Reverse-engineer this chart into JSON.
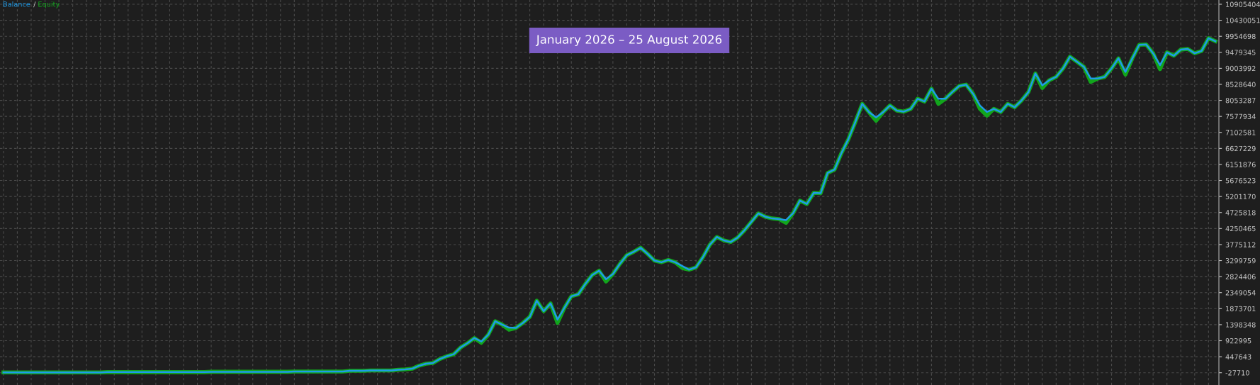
{
  "chart_data": {
    "type": "line",
    "annotations": [
      "January 2026 – 25 August 2026",
      "/"
    ],
    "categories": [
      null,
      null,
      null,
      null,
      null,
      null,
      null,
      null,
      null,
      null,
      null,
      null,
      null,
      null,
      null,
      null,
      null,
      null,
      null,
      null,
      null,
      null,
      null,
      null,
      null,
      null,
      null,
      null,
      null,
      null,
      null,
      null,
      null,
      null,
      null,
      null,
      null,
      null,
      null,
      null,
      null,
      null,
      null,
      null,
      null,
      null,
      null,
      null,
      null,
      null,
      null,
      null,
      null,
      null,
      null,
      null,
      null,
      null,
      null,
      null,
      null,
      null,
      null,
      null,
      null,
      null,
      null,
      null,
      null,
      null,
      null,
      null,
      null,
      null,
      null,
      null,
      null,
      null,
      null,
      null,
      null,
      null,
      null,
      null,
      null,
      null,
      null,
      null,
      null,
      null,
      null,
      null,
      null,
      null,
      null,
      null,
      null,
      null,
      null,
      null,
      null,
      null,
      null,
      null,
      null,
      null,
      null,
      null,
      null,
      null,
      null,
      null,
      null,
      null,
      null,
      null,
      null,
      null,
      null,
      null,
      null,
      null,
      null,
      null,
      null,
      null,
      null,
      null,
      null,
      null,
      null,
      null,
      null,
      null,
      null,
      null,
      null,
      null,
      null,
      null,
      null,
      null,
      null,
      null,
      null,
      null,
      null,
      null,
      null,
      null,
      null,
      null,
      null,
      null,
      null,
      null,
      null,
      null,
      null,
      null,
      null,
      null,
      null,
      null,
      null,
      null,
      null,
      null,
      null,
      null,
      null,
      null,
      null,
      null,
      null,
      null
    ],
    "ylim": [
      -391600,
      11031600
    ],
    "yticks": [
      -27710,
      447643,
      922995,
      1398348,
      1873701,
      2349054,
      2824406,
      3299759,
      3775112,
      4250465,
      4725818,
      5201170,
      5676523,
      6151876,
      6627229,
      7102581,
      7577934,
      8053287,
      8528640,
      9003992,
      9479345,
      9954698,
      10430051,
      10905404
    ],
    "tick_labels": "y",
    "grid": true,
    "line_style": "solid",
    "series": [
      {
        "name": "Equity",
        "color": "#12a51c",
        "values": [
          -20000,
          -20000,
          -20000,
          -20000,
          -20000,
          -20000,
          -20000,
          -20000,
          -20000,
          -20000,
          -20000,
          -20000,
          -20000,
          -20000,
          -20000,
          -10000,
          -10000,
          -10000,
          -10000,
          -10000,
          -10000,
          -10000,
          -10000,
          -10000,
          -10000,
          -10000,
          -10000,
          -10000,
          -10000,
          -10000,
          0,
          0,
          0,
          0,
          0,
          0,
          0,
          0,
          0,
          0,
          0,
          0,
          10000,
          10000,
          10000,
          10000,
          10000,
          10000,
          10000,
          10000,
          30000,
          30000,
          30000,
          40000,
          40000,
          40000,
          40000,
          60000,
          70000,
          90000,
          180000,
          240000,
          260000,
          380000,
          460000,
          520000,
          720000,
          850000,
          1000000,
          860000,
          1100000,
          1500000,
          1400000,
          1250000,
          1300000,
          1450000,
          1630000,
          2110000,
          1800000,
          2030000,
          1450000,
          1900000,
          2240000,
          2300000,
          2600000,
          2870000,
          3000000,
          2680000,
          2900000,
          3200000,
          3460000,
          3560000,
          3680000,
          3500000,
          3300000,
          3250000,
          3320000,
          3250000,
          3080000,
          3030000,
          3100000,
          3400000,
          3770000,
          4000000,
          3900000,
          3850000,
          3980000,
          4200000,
          4450000,
          4700000,
          4600000,
          4550000,
          4530000,
          4420000,
          4700000,
          5080000,
          4980000,
          5310000,
          5300000,
          5900000,
          6000000,
          6490000,
          6900000,
          7410000,
          7950000,
          7700000,
          7450000,
          7700000,
          7900000,
          7750000,
          7720000,
          7800000,
          8100000,
          8020000,
          8400000,
          7950000,
          8100000,
          8300000,
          8480000,
          8520000,
          8250000,
          7800000,
          7600000,
          7800000,
          7710000,
          7950000,
          7850000,
          8050000,
          8300000,
          8850000,
          8420000,
          8650000,
          8750000,
          9000000,
          9350000,
          9200000,
          9050000,
          8600000,
          8700000,
          8750000,
          9000000,
          9300000,
          8820000,
          9300000,
          9700000,
          9710000,
          9450000,
          8980000,
          9480000,
          9380000,
          9560000,
          9580000,
          9450000,
          9520000,
          9900000,
          9810000
        ]
      },
      {
        "name": "Balance",
        "color": "#1f9be8",
        "values": [
          -20000,
          -20000,
          -20000,
          -20000,
          -20000,
          -20000,
          -20000,
          -20000,
          -20000,
          -20000,
          -20000,
          -20000,
          -20000,
          -20000,
          -20000,
          -10000,
          -10000,
          -10000,
          -10000,
          -10000,
          -10000,
          -10000,
          -10000,
          -10000,
          -10000,
          -10000,
          -10000,
          -10000,
          -10000,
          -10000,
          0,
          0,
          0,
          0,
          0,
          0,
          0,
          0,
          0,
          0,
          0,
          0,
          10000,
          10000,
          10000,
          10000,
          10000,
          10000,
          10000,
          10000,
          30000,
          30000,
          30000,
          40000,
          40000,
          40000,
          40000,
          60000,
          70000,
          90000,
          180000,
          240000,
          260000,
          380000,
          460000,
          520000,
          720000,
          850000,
          1000000,
          900000,
          1100000,
          1500000,
          1400000,
          1310000,
          1300000,
          1450000,
          1630000,
          2110000,
          1800000,
          2030000,
          1550000,
          1900000,
          2240000,
          2300000,
          2600000,
          2870000,
          3000000,
          2750000,
          2900000,
          3200000,
          3460000,
          3560000,
          3680000,
          3500000,
          3300000,
          3250000,
          3320000,
          3250000,
          3140000,
          3030000,
          3100000,
          3400000,
          3770000,
          4000000,
          3900000,
          3850000,
          3980000,
          4200000,
          4450000,
          4700000,
          4600000,
          4550000,
          4530000,
          4500000,
          4700000,
          5080000,
          4980000,
          5310000,
          5300000,
          5900000,
          6000000,
          6490000,
          6900000,
          7410000,
          7950000,
          7700000,
          7550000,
          7700000,
          7900000,
          7750000,
          7720000,
          7800000,
          8100000,
          8020000,
          8400000,
          8100000,
          8100000,
          8300000,
          8480000,
          8520000,
          8250000,
          7900000,
          7710000,
          7800000,
          7710000,
          7950000,
          7850000,
          8050000,
          8300000,
          8850000,
          8500000,
          8650000,
          8750000,
          9000000,
          9350000,
          9200000,
          9050000,
          8700000,
          8700000,
          8750000,
          9000000,
          9300000,
          8900000,
          9300000,
          9700000,
          9710000,
          9450000,
          9100000,
          9480000,
          9380000,
          9560000,
          9580000,
          9450000,
          9520000,
          9900000,
          9810000
        ]
      }
    ]
  }
}
